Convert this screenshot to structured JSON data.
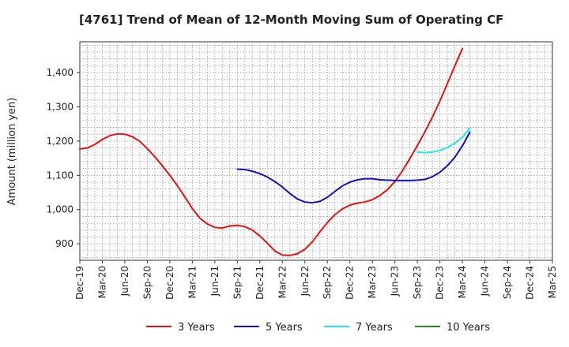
{
  "chart_data": {
    "type": "line",
    "title": "[4761]  Trend of Mean of 12-Month Moving Sum of Operating CF",
    "xlabel": "",
    "ylabel": "Amount (million yen)",
    "ylim": [
      852,
      1490
    ],
    "yticks": [
      900,
      1000,
      1100,
      1200,
      1300,
      1400
    ],
    "ytick_labels": [
      "900",
      "1,000",
      "1,100",
      "1,200",
      "1,300",
      "1,400"
    ],
    "x_start": "Dec-19",
    "x_end": "Mar-25",
    "xtick_labels": [
      "Dec-19",
      "Mar-20",
      "Jun-20",
      "Sep-20",
      "Dec-20",
      "Mar-21",
      "Jun-21",
      "Sep-21",
      "Dec-21",
      "Mar-22",
      "Jun-22",
      "Sep-22",
      "Dec-22",
      "Mar-23",
      "Jun-23",
      "Sep-23",
      "Dec-23",
      "Mar-24",
      "Jun-24",
      "Sep-24",
      "Dec-24",
      "Mar-25"
    ],
    "grid": true,
    "legend_position": "bottom",
    "series": [
      {
        "name": "3 Years",
        "color": "#e8120d",
        "start_month_index": 0,
        "values": [
          1177,
          1180,
          1190,
          1205,
          1216,
          1221,
          1220,
          1213,
          1199,
          1178,
          1154,
          1128,
          1100,
          1070,
          1037,
          1003,
          975,
          958,
          948,
          946,
          952,
          954,
          950,
          940,
          923,
          902,
          879,
          867,
          866,
          871,
          884,
          906,
          935,
          962,
          985,
          1002,
          1013,
          1019,
          1022,
          1029,
          1041,
          1058,
          1082,
          1113,
          1149,
          1187,
          1227,
          1270,
          1317,
          1368,
          1420,
          1470
        ]
      },
      {
        "name": "5 Years",
        "color": "#0d10c8",
        "start_month_index": 21,
        "values": [
          1118,
          1117,
          1112,
          1105,
          1095,
          1082,
          1066,
          1047,
          1031,
          1022,
          1020,
          1024,
          1036,
          1053,
          1069,
          1080,
          1087,
          1090,
          1090,
          1087,
          1086,
          1085,
          1085,
          1085,
          1086,
          1088,
          1096,
          1109,
          1128,
          1153,
          1186,
          1226
        ]
      },
      {
        "name": "7 Years",
        "color": "#1ee8e8",
        "start_month_index": 45,
        "values": [
          1168,
          1166,
          1168,
          1173,
          1181,
          1194,
          1211,
          1238
        ]
      },
      {
        "name": "10 Years",
        "color": "#228b22",
        "start_month_index": 0,
        "values": []
      }
    ]
  }
}
